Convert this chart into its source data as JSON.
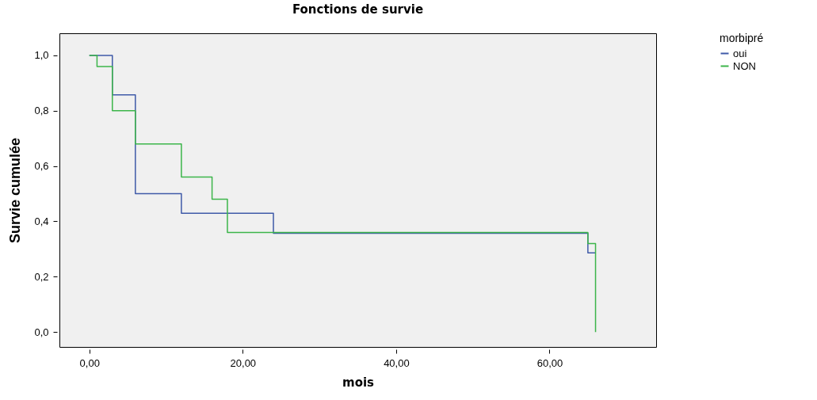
{
  "chart_data": {
    "type": "step",
    "title": "Fonctions de survie",
    "xlabel": "mois",
    "ylabel": "Survie cumulée",
    "legend_title": "morbipré",
    "legend": "top right",
    "grid": false,
    "xlim": [
      -3.9,
      73.9
    ],
    "xticks": [
      {
        "value": 0,
        "label": "0,00"
      },
      {
        "value": 20,
        "label": "20,00"
      },
      {
        "value": 40,
        "label": "40,00"
      },
      {
        "value": 60,
        "label": "60,00"
      }
    ],
    "ylim": [
      -0.054,
      1.08
    ],
    "yticks": [
      {
        "value": 0,
        "label": "0,0"
      },
      {
        "value": 0.2,
        "label": "0,2"
      },
      {
        "value": 0.4,
        "label": "0,4"
      },
      {
        "value": 0.6,
        "label": "0,6"
      },
      {
        "value": 0.8,
        "label": "0,8"
      },
      {
        "value": 1,
        "label": "1,0"
      }
    ],
    "series": [
      {
        "name": "oui",
        "color": "#3f5aa8",
        "x": [
          0,
          3,
          6,
          12,
          24,
          65,
          66
        ],
        "values": [
          1,
          0.857,
          0.5,
          0.429,
          0.357,
          0.286,
          0.286
        ]
      },
      {
        "name": "NON",
        "color": "#3cb54a",
        "x": [
          0,
          1,
          3,
          6,
          12,
          16,
          18,
          65,
          66
        ],
        "values": [
          1,
          0.96,
          0.8,
          0.68,
          0.56,
          0.48,
          0.36,
          0.32,
          0
        ]
      }
    ]
  }
}
